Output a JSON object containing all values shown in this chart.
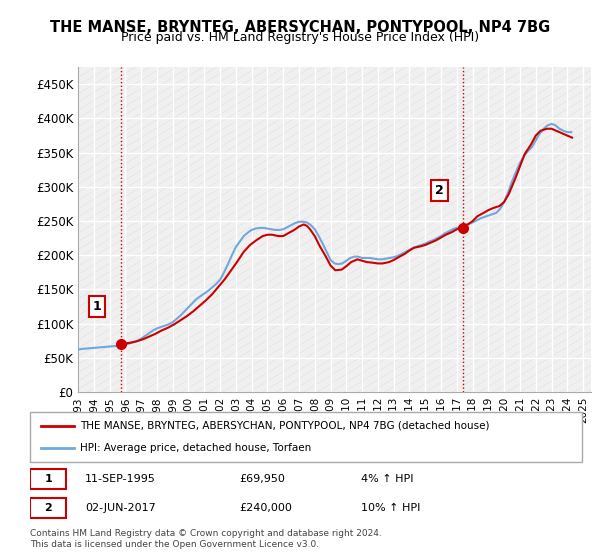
{
  "title1": "THE MANSE, BRYNTEG, ABERSYCHAN, PONTYPOOL, NP4 7BG",
  "title2": "Price paid vs. HM Land Registry's House Price Index (HPI)",
  "ylabel_ticks": [
    "£0",
    "£50K",
    "£100K",
    "£150K",
    "£200K",
    "£250K",
    "£300K",
    "£350K",
    "£400K",
    "£450K"
  ],
  "ytick_vals": [
    0,
    50000,
    100000,
    150000,
    200000,
    250000,
    300000,
    350000,
    400000,
    450000
  ],
  "ylim": [
    0,
    475000
  ],
  "xlim_start": 1993.0,
  "xlim_end": 2025.5,
  "xtick_years": [
    1993,
    1994,
    1995,
    1996,
    1997,
    1998,
    1999,
    2000,
    2001,
    2002,
    2003,
    2004,
    2005,
    2006,
    2007,
    2008,
    2009,
    2010,
    2011,
    2012,
    2013,
    2014,
    2015,
    2016,
    2017,
    2018,
    2019,
    2020,
    2021,
    2022,
    2023,
    2024,
    2025
  ],
  "hpi_color": "#6fa8dc",
  "price_color": "#cc0000",
  "marker1_x": 1995.7,
  "marker1_y": 69950,
  "marker2_x": 2017.4,
  "marker2_y": 240000,
  "vline1_x": 1995.7,
  "vline2_x": 2017.4,
  "legend_line1": "THE MANSE, BRYNTEG, ABERSYCHAN, PONTYPOOL, NP4 7BG (detached house)",
  "legend_line2": "HPI: Average price, detached house, Torfaen",
  "annotation1_label": "1",
  "annotation1_date": "11-SEP-1995",
  "annotation1_price": "£69,950",
  "annotation1_hpi": "4% ↑ HPI",
  "annotation2_label": "2",
  "annotation2_date": "02-JUN-2017",
  "annotation2_price": "£240,000",
  "annotation2_hpi": "10% ↑ HPI",
  "footer": "Contains HM Land Registry data © Crown copyright and database right 2024.\nThis data is licensed under the Open Government Licence v3.0.",
  "bg_color": "#ffffff",
  "plot_bg_color": "#f0f0f0",
  "grid_color": "#ffffff",
  "hpi_data_x": [
    1993.0,
    1993.25,
    1993.5,
    1993.75,
    1994.0,
    1994.25,
    1994.5,
    1994.75,
    1995.0,
    1995.25,
    1995.5,
    1995.75,
    1996.0,
    1996.25,
    1996.5,
    1996.75,
    1997.0,
    1997.25,
    1997.5,
    1997.75,
    1998.0,
    1998.25,
    1998.5,
    1998.75,
    1999.0,
    1999.25,
    1999.5,
    1999.75,
    2000.0,
    2000.25,
    2000.5,
    2000.75,
    2001.0,
    2001.25,
    2001.5,
    2001.75,
    2002.0,
    2002.25,
    2002.5,
    2002.75,
    2003.0,
    2003.25,
    2003.5,
    2003.75,
    2004.0,
    2004.25,
    2004.5,
    2004.75,
    2005.0,
    2005.25,
    2005.5,
    2005.75,
    2006.0,
    2006.25,
    2006.5,
    2006.75,
    2007.0,
    2007.25,
    2007.5,
    2007.75,
    2008.0,
    2008.25,
    2008.5,
    2008.75,
    2009.0,
    2009.25,
    2009.5,
    2009.75,
    2010.0,
    2010.25,
    2010.5,
    2010.75,
    2011.0,
    2011.25,
    2011.5,
    2011.75,
    2012.0,
    2012.25,
    2012.5,
    2012.75,
    2013.0,
    2013.25,
    2013.5,
    2013.75,
    2014.0,
    2014.25,
    2014.5,
    2014.75,
    2015.0,
    2015.25,
    2015.5,
    2015.75,
    2016.0,
    2016.25,
    2016.5,
    2016.75,
    2017.0,
    2017.25,
    2017.5,
    2017.75,
    2018.0,
    2018.25,
    2018.5,
    2018.75,
    2019.0,
    2019.25,
    2019.5,
    2019.75,
    2020.0,
    2020.25,
    2020.5,
    2020.75,
    2021.0,
    2021.25,
    2021.5,
    2021.75,
    2022.0,
    2022.25,
    2022.5,
    2022.75,
    2023.0,
    2023.25,
    2023.5,
    2023.75,
    2024.0,
    2024.25
  ],
  "hpi_data_y": [
    62000,
    63000,
    63500,
    64000,
    64500,
    65000,
    65500,
    66000,
    66500,
    67000,
    67500,
    68000,
    69000,
    71000,
    73000,
    75000,
    78000,
    82000,
    86000,
    90000,
    93000,
    95000,
    97000,
    99000,
    102000,
    107000,
    112000,
    118000,
    124000,
    130000,
    136000,
    140000,
    144000,
    148000,
    153000,
    158000,
    164000,
    175000,
    187000,
    200000,
    212000,
    220000,
    228000,
    233000,
    237000,
    239000,
    240000,
    240000,
    239000,
    238000,
    237000,
    237000,
    238000,
    241000,
    244000,
    247000,
    249000,
    249000,
    248000,
    244000,
    238000,
    228000,
    217000,
    205000,
    193000,
    188000,
    187000,
    188000,
    192000,
    196000,
    198000,
    198000,
    196000,
    196000,
    196000,
    195000,
    194000,
    194000,
    195000,
    196000,
    197000,
    199000,
    202000,
    205000,
    208000,
    211000,
    213000,
    215000,
    217000,
    220000,
    222000,
    225000,
    228000,
    232000,
    235000,
    238000,
    240000,
    242000,
    244000,
    246000,
    248000,
    251000,
    254000,
    256000,
    258000,
    260000,
    262000,
    268000,
    278000,
    292000,
    308000,
    322000,
    335000,
    345000,
    352000,
    358000,
    368000,
    378000,
    385000,
    390000,
    392000,
    390000,
    385000,
    382000,
    380000,
    380000
  ],
  "price_data_x": [
    1995.7,
    1996.0,
    1996.3,
    1996.7,
    1997.1,
    1997.5,
    1997.9,
    1998.3,
    1998.7,
    1999.1,
    1999.5,
    1999.9,
    2000.3,
    2000.7,
    2001.1,
    2001.5,
    2001.9,
    2002.3,
    2002.7,
    2003.1,
    2003.5,
    2003.9,
    2004.3,
    2004.7,
    2005.0,
    2005.3,
    2005.7,
    2006.0,
    2006.3,
    2006.7,
    2007.0,
    2007.3,
    2007.5,
    2007.7,
    2008.0,
    2008.3,
    2008.7,
    2009.0,
    2009.3,
    2009.7,
    2010.0,
    2010.3,
    2010.7,
    2011.0,
    2011.3,
    2011.7,
    2012.0,
    2012.3,
    2012.7,
    2013.0,
    2013.3,
    2013.7,
    2014.0,
    2014.3,
    2014.7,
    2015.0,
    2015.3,
    2015.7,
    2016.0,
    2016.3,
    2016.7,
    2017.0,
    2017.4,
    2017.7,
    2018.0,
    2018.3,
    2018.7,
    2019.0,
    2019.3,
    2019.7,
    2020.0,
    2020.3,
    2020.7,
    2021.0,
    2021.3,
    2021.7,
    2022.0,
    2022.3,
    2022.7,
    2023.0,
    2023.3,
    2023.7,
    2024.0,
    2024.3
  ],
  "price_data_y": [
    69950,
    71000,
    72000,
    74000,
    77000,
    81000,
    85000,
    90000,
    94000,
    99000,
    105000,
    111000,
    118000,
    126000,
    134000,
    143000,
    154000,
    165000,
    178000,
    191000,
    205000,
    215000,
    222000,
    228000,
    230000,
    230000,
    228000,
    228000,
    232000,
    237000,
    242000,
    245000,
    243000,
    238000,
    228000,
    214000,
    198000,
    185000,
    178000,
    179000,
    184000,
    190000,
    194000,
    192000,
    190000,
    189000,
    188000,
    188000,
    190000,
    193000,
    197000,
    202000,
    207000,
    211000,
    213000,
    215000,
    218000,
    222000,
    226000,
    230000,
    234000,
    238000,
    240000,
    245000,
    250000,
    257000,
    262000,
    266000,
    269000,
    272000,
    278000,
    290000,
    312000,
    330000,
    348000,
    362000,
    375000,
    382000,
    385000,
    385000,
    382000,
    378000,
    375000,
    372000
  ]
}
